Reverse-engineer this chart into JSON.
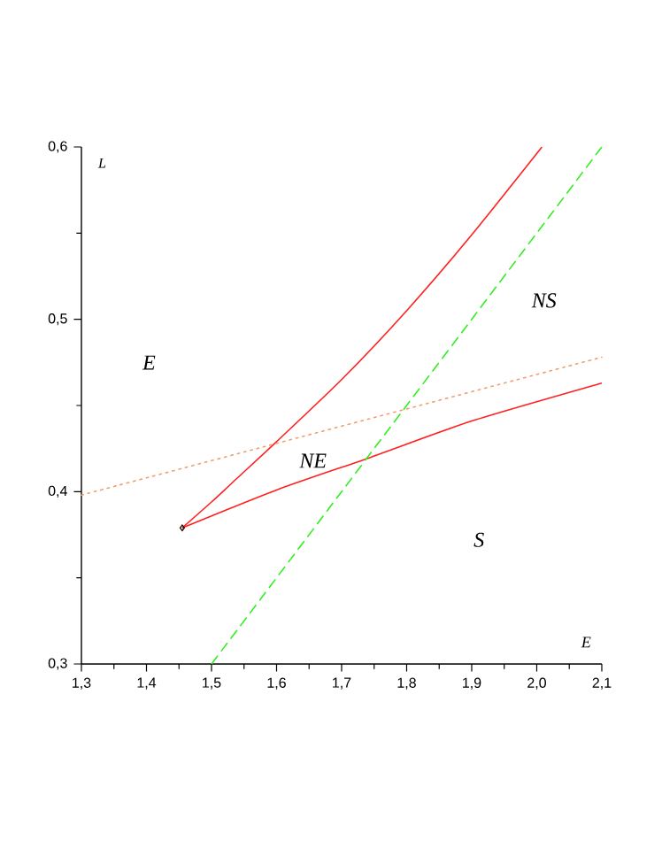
{
  "chart_data": {
    "type": "line",
    "xlabel": "E",
    "ylabel": "L",
    "xlim": [
      1.3,
      2.1
    ],
    "ylim": [
      0.3,
      0.6
    ],
    "xticks": [
      {
        "value": 1.3,
        "label": "1,3"
      },
      {
        "value": 1.4,
        "label": "1,4"
      },
      {
        "value": 1.5,
        "label": "1,5"
      },
      {
        "value": 1.6,
        "label": "1,6"
      },
      {
        "value": 1.7,
        "label": "1,7"
      },
      {
        "value": 1.8,
        "label": "1,8"
      },
      {
        "value": 1.9,
        "label": "1,9"
      },
      {
        "value": 2.0,
        "label": "2,0"
      },
      {
        "value": 2.1,
        "label": "2,1"
      }
    ],
    "yticks": [
      {
        "value": 0.3,
        "label": "0,3"
      },
      {
        "value": 0.4,
        "label": "0,4"
      },
      {
        "value": 0.5,
        "label": "0,5"
      },
      {
        "value": 0.6,
        "label": "0,6"
      }
    ],
    "series": [
      {
        "color": "#ff2020",
        "line_style": "solid",
        "x": [
          1.455,
          1.5,
          1.54,
          1.6,
          1.7,
          1.8,
          1.9,
          2.008
        ],
        "values": [
          0.379,
          0.394,
          0.408,
          0.429,
          0.465,
          0.505,
          0.549,
          0.6
        ]
      },
      {
        "color": "#ff2020",
        "line_style": "solid",
        "x": [
          1.455,
          1.6,
          1.745,
          1.9,
          2.1
        ],
        "values": [
          0.379,
          0.401,
          0.42,
          0.441,
          0.463
        ]
      },
      {
        "color": "#33ee22",
        "line_style": "dashed",
        "x": [
          1.5,
          2.1
        ],
        "values": [
          0.3,
          0.6
        ]
      },
      {
        "color": "#f0a070",
        "line_style": "dotted",
        "x": [
          1.3,
          2.1
        ],
        "values": [
          0.398,
          0.478
        ]
      },
      {
        "type": "scatter",
        "marker": "diamond",
        "color": "#000000",
        "x": [
          1.455
        ],
        "values": [
          0.379
        ]
      }
    ],
    "annotations": [
      "E",
      "NE",
      "NS",
      "S"
    ]
  }
}
